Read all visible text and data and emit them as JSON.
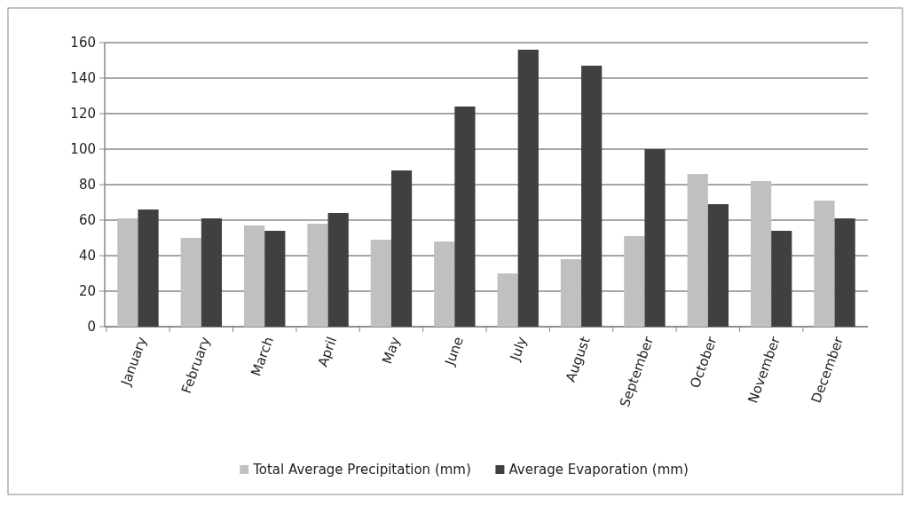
{
  "chart_data": {
    "type": "bar",
    "categories": [
      "January",
      "February",
      "March",
      "April",
      "May",
      "June",
      "July",
      "August",
      "September",
      "October",
      "November",
      "December"
    ],
    "series": [
      {
        "name": "Total Average Precipitation (mm)",
        "color": "#c0c0c0",
        "values": [
          61,
          50,
          57,
          58,
          49,
          48,
          30,
          38,
          51,
          86,
          82,
          71
        ]
      },
      {
        "name": "Average Evaporation (mm)",
        "color": "#404040",
        "values": [
          66,
          61,
          54,
          64,
          88,
          124,
          156,
          147,
          100,
          69,
          54,
          61
        ]
      }
    ],
    "ylim": [
      0,
      160
    ],
    "yticks": [
      0,
      20,
      40,
      60,
      80,
      100,
      120,
      140,
      160
    ],
    "grid": "y",
    "legend": "bottom"
  }
}
